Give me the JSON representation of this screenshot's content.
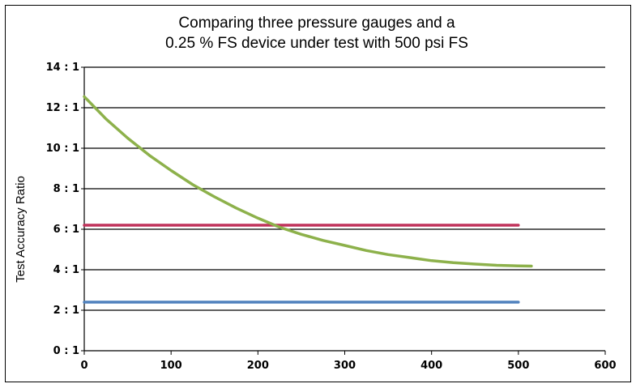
{
  "chart_data": {
    "type": "line",
    "title_lines": [
      "Comparing three pressure gauges and a",
      "0.25 % FS device under test with 500 psi FS"
    ],
    "xlabel": "",
    "ylabel": "Test Accuracy Ratio",
    "xlim": [
      0,
      600
    ],
    "ylim": [
      0,
      14
    ],
    "x_ticks": [
      0,
      100,
      200,
      300,
      400,
      500,
      600
    ],
    "x_tick_labels": [
      "0",
      "100",
      "200",
      "300",
      "400",
      "500",
      "600"
    ],
    "y_ticks": [
      0,
      2,
      4,
      6,
      8,
      10,
      12,
      14
    ],
    "y_tick_labels": [
      "0 : 1",
      "2 : 1",
      "4 : 1",
      "6 : 1",
      "8 : 1",
      "10 : 1",
      "12 : 1",
      "14 : 1"
    ],
    "grid": "horizontal",
    "legend": "none",
    "series": [
      {
        "color": "#c0315a",
        "x": [
          0,
          500
        ],
        "y": [
          6.2,
          6.2
        ]
      },
      {
        "color": "#4f81bd",
        "x": [
          0,
          500
        ],
        "y": [
          2.4,
          2.4
        ]
      },
      {
        "color": "#8db14b",
        "x": [
          0,
          25,
          50,
          75,
          100,
          125,
          150,
          175,
          200,
          225,
          250,
          275,
          300,
          325,
          350,
          375,
          400,
          425,
          450,
          475,
          500,
          515
        ],
        "y": [
          12.55,
          11.45,
          10.5,
          9.65,
          8.9,
          8.2,
          7.6,
          7.05,
          6.55,
          6.1,
          5.75,
          5.45,
          5.2,
          4.95,
          4.75,
          4.6,
          4.45,
          4.35,
          4.28,
          4.22,
          4.19,
          4.18
        ]
      }
    ]
  }
}
